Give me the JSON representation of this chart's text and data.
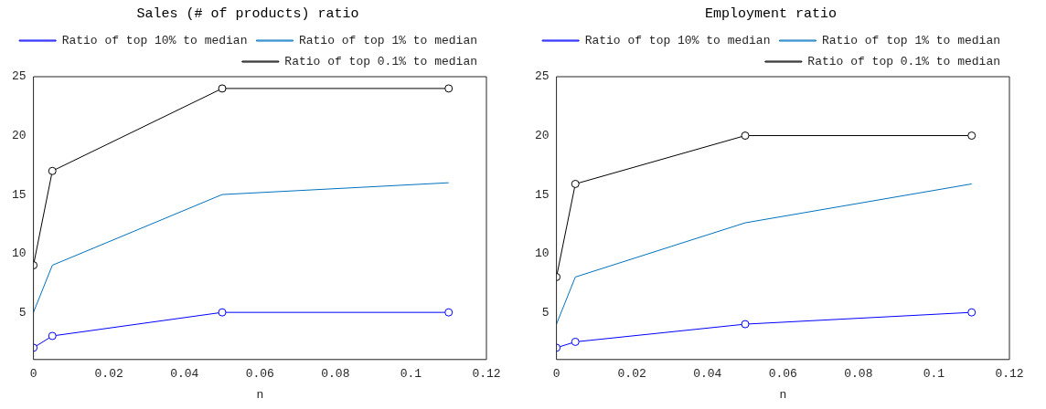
{
  "chart_data": [
    {
      "type": "line",
      "title": "Sales (# of products) ratio",
      "xlabel": "n",
      "x": [
        0,
        0.005,
        0.05,
        0.11
      ],
      "xlim": [
        0,
        0.12
      ],
      "xticks": [
        0,
        0.02,
        0.04,
        0.06,
        0.08,
        0.1,
        0.12
      ],
      "ylim": [
        1,
        25
      ],
      "yticks": [
        5,
        10,
        15,
        20,
        25
      ],
      "grid": false,
      "legend": "top right",
      "series": [
        {
          "name": "Ratio of top 10% to median",
          "color": "#0000ff",
          "values": [
            2,
            3,
            5,
            5
          ],
          "marker": "circle"
        },
        {
          "name": "Ratio of top 1% to median",
          "color": "#0072bd",
          "values": [
            5,
            9,
            15,
            16
          ],
          "marker": "none"
        },
        {
          "name": "Ratio of top 0.1% to median",
          "color": "#000000",
          "values": [
            9,
            17,
            24,
            24
          ],
          "marker": "circle"
        }
      ]
    },
    {
      "type": "line",
      "title": "Employment ratio",
      "xlabel": "n",
      "x": [
        0,
        0.005,
        0.05,
        0.11
      ],
      "xlim": [
        0,
        0.12
      ],
      "xticks": [
        0,
        0.02,
        0.04,
        0.06,
        0.08,
        0.1,
        0.12
      ],
      "ylim": [
        1,
        25
      ],
      "yticks": [
        5,
        10,
        15,
        20,
        25
      ],
      "grid": false,
      "legend": "top right",
      "series": [
        {
          "name": "Ratio of top 10% to median",
          "color": "#0000ff",
          "values": [
            2,
            2.5,
            4,
            5
          ],
          "marker": "circle"
        },
        {
          "name": "Ratio of top 1% to median",
          "color": "#0072bd",
          "values": [
            4,
            8,
            12.6,
            15.9
          ],
          "marker": "none"
        },
        {
          "name": "Ratio of top 0.1% to median",
          "color": "#000000",
          "values": [
            8,
            15.9,
            20,
            20
          ],
          "marker": "circle"
        }
      ]
    }
  ]
}
